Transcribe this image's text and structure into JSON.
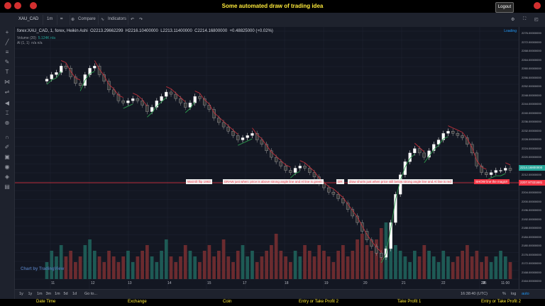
{
  "app": {
    "title": "Some automated draw of trading idea",
    "logout_label": "Logout"
  },
  "toolbar": {
    "symbol": "XAU_CAD",
    "interval": "1m",
    "compare": "Compare",
    "indicators": "Indicators"
  },
  "legend": {
    "series": "forex:XAU_CAD, 1, forex, Heikin Ashi",
    "o": "O2213.29662299",
    "h": "H2216.10400000",
    "l": "L2213.11400000",
    "c": "C2214.16800000",
    "chg": "+0.48825000 (+0.02%)",
    "volume": "Volume (20)",
    "volume_val": "5.124K  n/a",
    "al": "Al (1, 1)",
    "al_val": "n/a  n/a",
    "loading": "Loading"
  },
  "price_ticks": [
    "2276.00000000",
    "2272.00000000",
    "2268.00000000",
    "2264.00000000",
    "2260.00000000",
    "2256.00000000",
    "2252.00000000",
    "2248.00000000",
    "2244.00000000",
    "2240.00000000",
    "2236.00000000",
    "2232.00000000",
    "2228.00000000",
    "2224.00000000",
    "2220.00000000",
    "2216.00000000",
    "2212.00000000",
    "2208.00000000",
    "2204.00000000",
    "2200.00000000",
    "2196.00000000",
    "2192.00000000",
    "2188.00000000",
    "2184.00000000",
    "2180.00000000",
    "2176.00000000",
    "2172.00000000",
    "2168.00000000",
    "2164.00000000"
  ],
  "price_badges": {
    "current": "2214.16800000",
    "line": "2207.97321681"
  },
  "x_labels": [
    "11",
    "12",
    "13",
    "14",
    "15",
    "17",
    "18",
    "19",
    "20",
    "21",
    "22",
    "23",
    "24",
    "25",
    "11:00"
  ],
  "annotations": {
    "a1": "Wait till flip 1983",
    "a2": "DRAW just when: price is above strong angle line and Al line is green",
    "a3": "DR",
    "a4": "draw shorts just when price still below strong angle line and Al line is red",
    "a5": "SHOW line the magic!!"
  },
  "watermark": "Chart by TradingView",
  "bottom": {
    "ranges": [
      "1y",
      "1y",
      "1m",
      "3m",
      "1m",
      "5d",
      "1d"
    ],
    "goto": "Go to...",
    "time": "16:38:40 (UTC)",
    "percent": "%",
    "log": "log",
    "auto": "auto"
  },
  "footer": {
    "cols": [
      "Date Time",
      "Exchange",
      "Coin",
      "Entry or Take Profit 2",
      "Take Profit 1",
      "Entry or Take Profit 2"
    ]
  },
  "colors": {
    "up": "#26a69a",
    "down": "#ef5350",
    "bg": "#131722",
    "accent": "#ffeb3b",
    "line": "#f23645"
  },
  "chart_data": {
    "type": "candlestick",
    "ylim": [
      2164,
      2278
    ],
    "closes": [
      2256,
      2258,
      2259,
      2262,
      2261,
      2257,
      2254,
      2253,
      2258,
      2261,
      2262,
      2258,
      2255,
      2251,
      2249,
      2246,
      2245,
      2246,
      2247,
      2246,
      2244,
      2241,
      2243,
      2246,
      2248,
      2250,
      2249,
      2247,
      2245,
      2243,
      2245,
      2248,
      2247,
      2244,
      2242,
      2238,
      2236,
      2234,
      2232,
      2230,
      2228,
      2229,
      2230,
      2231,
      2228,
      2226,
      2223,
      2220,
      2218,
      2216,
      2214,
      2213,
      2215,
      2216,
      2215,
      2213,
      2211,
      2208,
      2206,
      2204,
      2203,
      2201,
      2199,
      2196,
      2193,
      2190,
      2186,
      2182,
      2179,
      2176,
      2174,
      2178,
      2190,
      2203,
      2212,
      2218,
      2222,
      2224,
      2222,
      2220,
      2223,
      2226,
      2228,
      2231,
      2232,
      2231,
      2230,
      2229,
      2226,
      2222,
      2216,
      2213,
      2212,
      2213,
      2214,
      2214,
      2215,
      2214
    ],
    "volumes": [
      3,
      5,
      4,
      6,
      4,
      5,
      3,
      4,
      6,
      7,
      5,
      4,
      3,
      5,
      4,
      3,
      4,
      5,
      3,
      4,
      5,
      6,
      4,
      3,
      5,
      7,
      4,
      3,
      4,
      6,
      5,
      4,
      3,
      5,
      6,
      4,
      5,
      7,
      4,
      3,
      5,
      6,
      4,
      5,
      3,
      4,
      5,
      6,
      8,
      5,
      4,
      3,
      5,
      4,
      6,
      5,
      4,
      6,
      5,
      4,
      3,
      5,
      6,
      4,
      5,
      7,
      8,
      6,
      5,
      7,
      9,
      10,
      8,
      6,
      5,
      4,
      3,
      5,
      4,
      6,
      5,
      4,
      3,
      5,
      4,
      3,
      4,
      5,
      6,
      4,
      5,
      3,
      4,
      3,
      4,
      5,
      4,
      3
    ]
  }
}
